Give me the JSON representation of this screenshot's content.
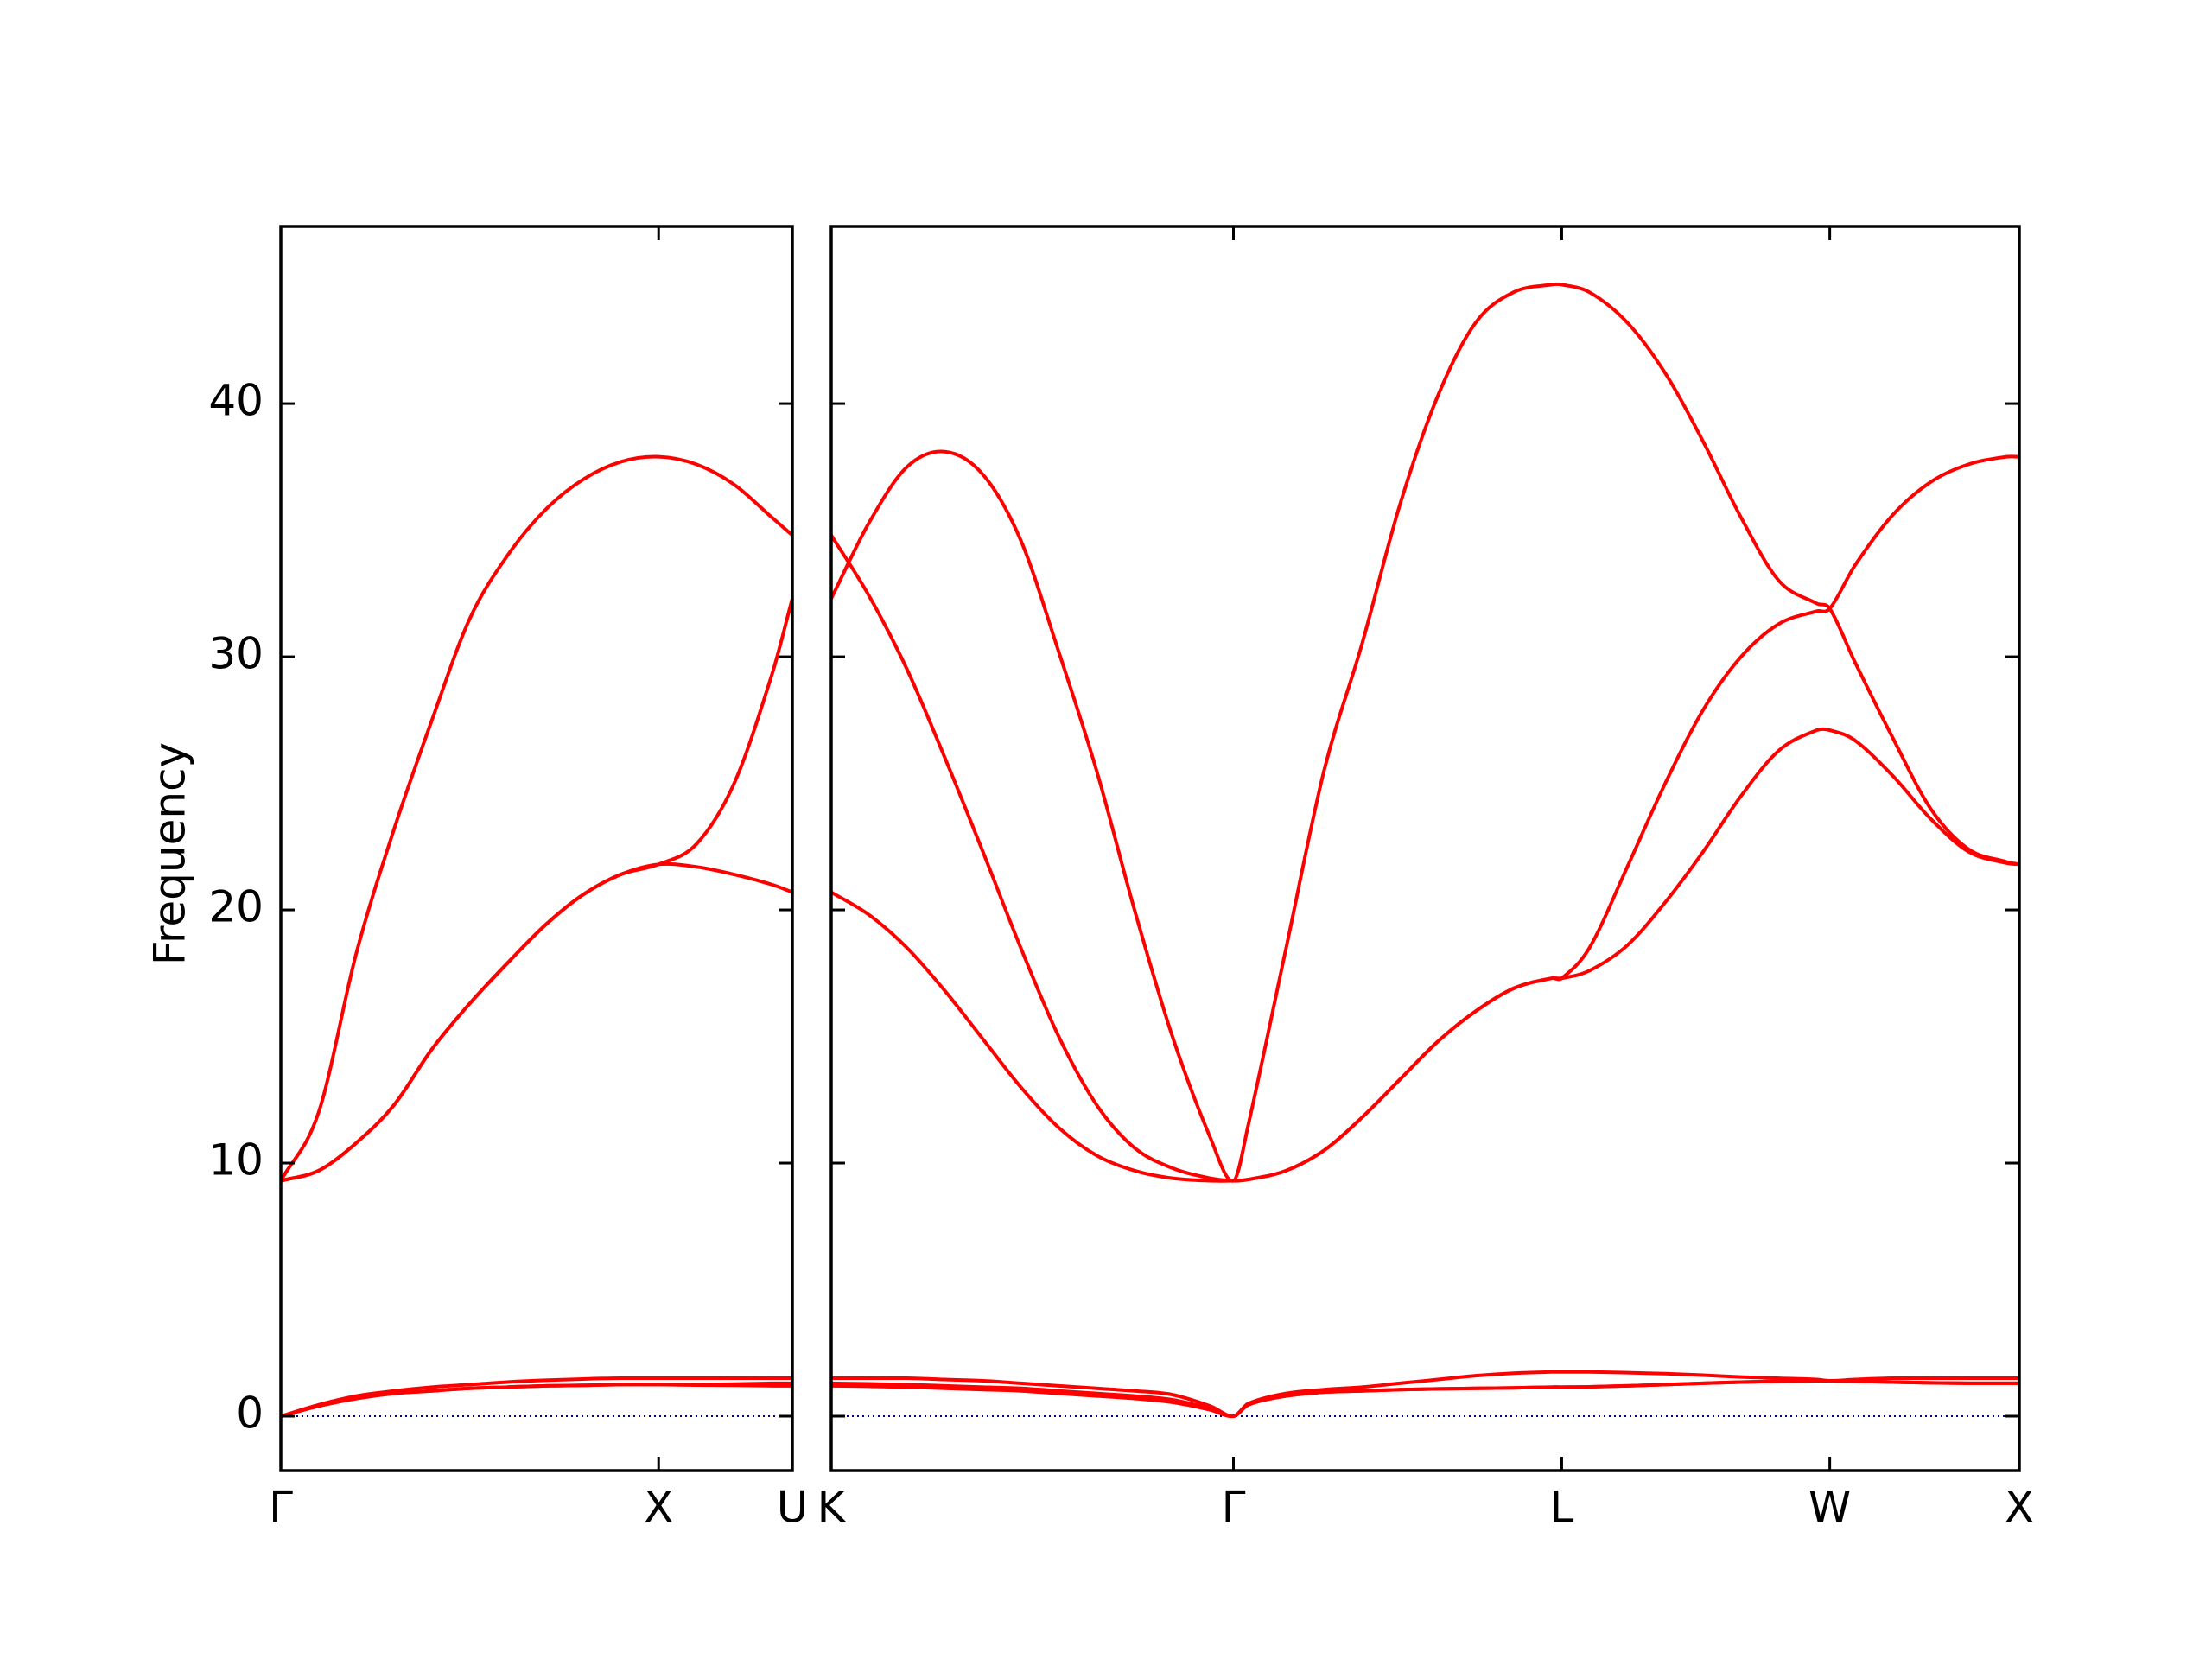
{
  "chart_data": [
    {
      "type": "line",
      "ylabel": "Frequency",
      "x": [
        0,
        0.1,
        0.2,
        0.3,
        0.4,
        0.5,
        0.6,
        0.7,
        0.8,
        0.9,
        1.0,
        1.1,
        1.2,
        1.3,
        1.354
      ],
      "xlim": [
        0,
        1.354
      ],
      "xticks": [
        {
          "value": 0,
          "label": "Γ"
        },
        {
          "value": 1.0,
          "label": "X"
        },
        {
          "value": 1.354,
          "label": "U"
        }
      ],
      "ylim": [
        -2.15,
        47
      ],
      "yticks": [
        0,
        10,
        20,
        30,
        40
      ],
      "ytick_labels": true,
      "hline": {
        "y": 0,
        "color": "#00008b"
      },
      "series": [
        {
          "color": "#ff0000",
          "values": [
            9.3,
            12.0,
            18.3,
            23.2,
            27.5,
            31.5,
            34.0,
            35.8,
            37.0,
            37.7,
            37.9,
            37.6,
            36.8,
            35.5,
            34.8
          ]
        },
        {
          "color": "#ff0000",
          "values": [
            9.3,
            9.7,
            10.8,
            12.3,
            14.5,
            16.3,
            17.9,
            19.4,
            20.6,
            21.4,
            21.8,
            22.6,
            25.0,
            29.3,
            32.3
          ]
        },
        {
          "color": "#ff0000",
          "values": [
            9.3,
            9.7,
            10.8,
            12.3,
            14.5,
            16.3,
            17.9,
            19.4,
            20.6,
            21.4,
            21.8,
            21.7,
            21.4,
            21.0,
            20.7
          ]
        },
        {
          "color": "#ff0000",
          "values": [
            0,
            0.45,
            0.8,
            1.0,
            1.15,
            1.25,
            1.35,
            1.42,
            1.47,
            1.5,
            1.5,
            1.5,
            1.5,
            1.5,
            1.5
          ]
        },
        {
          "color": "#ff0000",
          "values": [
            0,
            0.4,
            0.7,
            0.9,
            1.0,
            1.1,
            1.15,
            1.2,
            1.22,
            1.25,
            1.25,
            1.25,
            1.27,
            1.3,
            1.3
          ]
        },
        {
          "color": "#ff0000",
          "values": [
            0,
            0.4,
            0.7,
            0.9,
            1.0,
            1.1,
            1.15,
            1.2,
            1.22,
            1.25,
            1.25,
            1.23,
            1.22,
            1.2,
            1.2
          ]
        }
      ]
    },
    {
      "type": "line",
      "x": [
        0,
        0.1,
        0.2,
        0.3,
        0.4,
        0.5,
        0.6,
        0.7,
        0.8,
        0.9,
        1.0,
        1.061,
        1.1,
        1.2,
        1.3,
        1.4,
        1.5,
        1.6,
        1.7,
        1.8,
        1.9,
        1.927,
        2.0,
        2.1,
        2.2,
        2.3,
        2.4,
        2.5,
        2.6,
        2.634,
        2.7,
        2.8,
        2.9,
        3.0,
        3.1,
        3.134
      ],
      "xlim": [
        0,
        3.134
      ],
      "xticks": [
        {
          "value": 0,
          "label": "K"
        },
        {
          "value": 1.061,
          "label": "Γ"
        },
        {
          "value": 1.927,
          "label": "L"
        },
        {
          "value": 2.634,
          "label": "W"
        },
        {
          "value": 3.134,
          "label": "X"
        }
      ],
      "ylim": [
        -2.15,
        47
      ],
      "yticks": [
        0,
        10,
        20,
        30,
        40
      ],
      "ytick_labels": false,
      "hline": {
        "y": 0,
        "color": "#00008b"
      },
      "series": [
        {
          "color": "#ff0000",
          "values": [
            32.3,
            35.3,
            37.5,
            38.1,
            37.2,
            34.6,
            30.2,
            25.5,
            20,
            15,
            11,
            9.3,
            11.5,
            18.5,
            25.5,
            30.5,
            36.0,
            40.3,
            43.2,
            44.4,
            44.7,
            44.7,
            44.4,
            43.2,
            41.2,
            38.5,
            35.5,
            33.0,
            32.1,
            31.9,
            29.8,
            26.8,
            24.0,
            22.4,
            21.9,
            21.8
          ]
        },
        {
          "color": "#ff0000",
          "values": [
            34.8,
            32.4,
            29.5,
            26.0,
            22.3,
            18.5,
            15.0,
            12.3,
            10.6,
            9.8,
            9.4,
            9.3,
            9.35,
            9.7,
            10.5,
            11.8,
            13.3,
            14.8,
            16.0,
            16.9,
            17.3,
            17.3,
            18.5,
            21.7,
            25.0,
            27.9,
            30.0,
            31.3,
            31.8,
            31.9,
            33.6,
            35.6,
            36.9,
            37.6,
            37.9,
            37.9
          ]
        },
        {
          "color": "#ff0000",
          "values": [
            20.7,
            19.8,
            18.5,
            16.8,
            14.9,
            13.0,
            11.4,
            10.3,
            9.7,
            9.4,
            9.3,
            9.3,
            9.35,
            9.7,
            10.5,
            11.8,
            13.3,
            14.8,
            16.0,
            16.9,
            17.3,
            17.3,
            17.6,
            18.6,
            20.3,
            22.3,
            24.5,
            26.3,
            27.1,
            27.1,
            26.7,
            25.3,
            23.6,
            22.3,
            21.85,
            21.8
          ]
        },
        {
          "color": "#ff0000",
          "values": [
            1.5,
            1.5,
            1.5,
            1.45,
            1.4,
            1.3,
            1.2,
            1.1,
            1.0,
            0.85,
            0.4,
            0,
            0.5,
            0.9,
            1.05,
            1.15,
            1.3,
            1.45,
            1.6,
            1.7,
            1.75,
            1.75,
            1.75,
            1.72,
            1.68,
            1.62,
            1.55,
            1.5,
            1.45,
            1.4,
            1.45,
            1.5,
            1.5,
            1.5,
            1.5,
            1.5
          ]
        },
        {
          "color": "#ff0000",
          "values": [
            1.3,
            1.28,
            1.25,
            1.2,
            1.15,
            1.1,
            1.0,
            0.9,
            0.8,
            0.65,
            0.3,
            0,
            0.45,
            0.8,
            0.95,
            1.0,
            1.05,
            1.08,
            1.1,
            1.12,
            1.15,
            1.15,
            1.16,
            1.2,
            1.25,
            1.3,
            1.35,
            1.38,
            1.4,
            1.4,
            1.38,
            1.35,
            1.32,
            1.3,
            1.3,
            1.3
          ]
        },
        {
          "color": "#ff0000",
          "values": [
            1.2,
            1.18,
            1.15,
            1.1,
            1.05,
            1.0,
            0.9,
            0.8,
            0.7,
            0.55,
            0.25,
            0,
            0.45,
            0.8,
            0.95,
            1.0,
            1.05,
            1.08,
            1.1,
            1.12,
            1.15,
            1.15,
            1.16,
            1.2,
            1.25,
            1.3,
            1.35,
            1.38,
            1.4,
            1.4,
            1.38,
            1.35,
            1.32,
            1.3,
            1.3,
            1.3
          ]
        }
      ]
    }
  ]
}
